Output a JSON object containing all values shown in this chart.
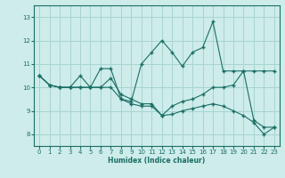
{
  "xlabel": "Humidex (Indice chaleur)",
  "ylabel": "",
  "xlim": [
    -0.5,
    23.5
  ],
  "ylim": [
    7.5,
    13.5
  ],
  "xticks": [
    0,
    1,
    2,
    3,
    4,
    5,
    6,
    7,
    8,
    9,
    10,
    11,
    12,
    13,
    14,
    15,
    16,
    17,
    18,
    19,
    20,
    21,
    22,
    23
  ],
  "yticks": [
    8,
    9,
    10,
    11,
    12,
    13
  ],
  "bg_color": "#cdecea",
  "grid_color": "#a8d4d0",
  "line_color": "#1a6e64",
  "lines": [
    {
      "x": [
        0,
        1,
        2,
        3,
        4,
        5,
        6,
        7,
        8,
        9,
        10,
        11,
        12,
        13,
        14,
        15,
        16,
        17,
        18,
        19,
        20,
        21,
        22,
        23
      ],
      "y": [
        10.5,
        10.1,
        10.0,
        10.0,
        10.5,
        10.0,
        10.8,
        10.8,
        9.5,
        9.4,
        11.0,
        11.5,
        12.0,
        11.5,
        10.9,
        11.5,
        11.7,
        12.8,
        10.7,
        10.7,
        10.7,
        8.6,
        8.3,
        8.3
      ]
    },
    {
      "x": [
        0,
        1,
        2,
        3,
        4,
        5,
        6,
        7,
        8,
        9,
        10,
        11,
        12,
        13,
        14,
        15,
        16,
        17,
        18,
        19,
        20,
        21,
        22,
        23
      ],
      "y": [
        10.5,
        10.1,
        10.0,
        10.0,
        10.0,
        10.0,
        10.0,
        10.4,
        9.7,
        9.5,
        9.3,
        9.3,
        8.8,
        9.2,
        9.4,
        9.5,
        9.7,
        10.0,
        10.0,
        10.1,
        10.7,
        10.7,
        10.7,
        10.7
      ]
    },
    {
      "x": [
        0,
        1,
        2,
        3,
        4,
        5,
        6,
        7,
        8,
        9,
        10,
        11,
        12,
        13,
        14,
        15,
        16,
        17,
        18,
        19,
        20,
        21,
        22,
        23
      ],
      "y": [
        10.5,
        10.1,
        10.0,
        10.0,
        10.0,
        10.0,
        10.0,
        10.0,
        9.5,
        9.3,
        9.2,
        9.2,
        8.8,
        8.85,
        9.0,
        9.1,
        9.2,
        9.3,
        9.2,
        9.0,
        8.8,
        8.5,
        8.0,
        8.3
      ]
    }
  ]
}
